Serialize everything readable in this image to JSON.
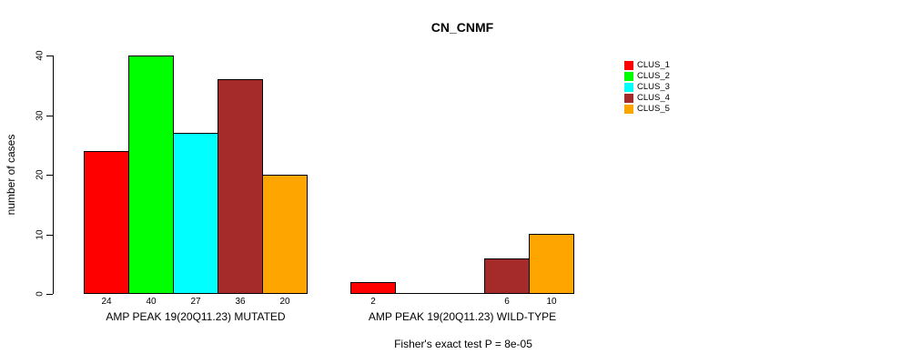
{
  "title": "CN_CNMF",
  "y_axis": {
    "label": "number of cases",
    "ticks": [
      0,
      10,
      20,
      30,
      40
    ]
  },
  "chart_data": {
    "type": "bar",
    "title": "CN_CNMF",
    "xlabel": "",
    "ylabel": "number of cases",
    "ylim": [
      0,
      40
    ],
    "grid": false,
    "legend_position": "right",
    "categories": [
      "AMP PEAK 19(20Q11.23) MUTATED",
      "AMP PEAK 19(20Q11.23) WILD-TYPE"
    ],
    "series": [
      {
        "name": "CLUS_1",
        "color": "#FF0000",
        "values": [
          24,
          2
        ]
      },
      {
        "name": "CLUS_2",
        "color": "#00FF00",
        "values": [
          40,
          0
        ]
      },
      {
        "name": "CLUS_3",
        "color": "#00FFFF",
        "values": [
          27,
          0
        ]
      },
      {
        "name": "CLUS_4",
        "color": "#A52A2A",
        "values": [
          36,
          6
        ]
      },
      {
        "name": "CLUS_5",
        "color": "#FFA500",
        "values": [
          20,
          10
        ]
      }
    ],
    "bar_value_labels": {
      "shown_for_nonzero_only": true
    },
    "footnote": "Fisher's exact test P = 8e-05"
  }
}
